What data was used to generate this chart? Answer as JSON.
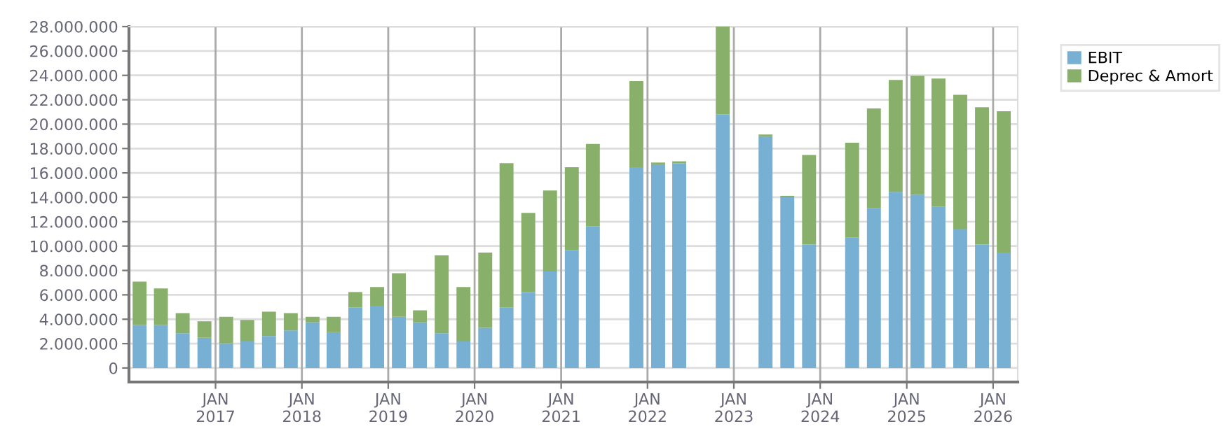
{
  "chart_data": {
    "type": "bar",
    "stacked": true,
    "x": [
      "2016-02-15",
      "2016-05-15",
      "2016-08-15",
      "2016-11-15",
      "2017-02-15",
      "2017-05-15",
      "2017-08-15",
      "2017-11-15",
      "2018-02-15",
      "2018-05-15",
      "2018-08-15",
      "2018-11-15",
      "2019-02-15",
      "2019-05-15",
      "2019-08-15",
      "2019-11-15",
      "2020-02-15",
      "2020-05-15",
      "2020-08-15",
      "2020-11-15",
      "2021-02-15",
      "2021-05-15",
      "2021-08-15",
      "2021-11-15",
      "2022-02-15",
      "2022-05-15",
      "2022-08-15",
      "2022-11-15",
      "2023-02-15",
      "2023-05-15",
      "2023-08-15",
      "2023-11-15",
      "2024-02-15",
      "2024-05-15",
      "2024-08-15",
      "2024-11-15",
      "2025-02-15",
      "2025-05-15",
      "2025-08-15",
      "2025-11-15",
      "2026-02-15"
    ],
    "series": [
      {
        "name": "EBIT",
        "color": "#77b0d3",
        "values": [
          3530000,
          3530000,
          2850000,
          2480000,
          2030000,
          2180000,
          2630000,
          3080000,
          3750000,
          2930000,
          4950000,
          5100000,
          4200000,
          3750000,
          2850000,
          2180000,
          3300000,
          4950000,
          6230000,
          7920000,
          9680000,
          11630000,
          null,
          16460000,
          16700000,
          16800000,
          null,
          20800000,
          null,
          19000000,
          14000000,
          10130000,
          null,
          10690000,
          13100000,
          14450000,
          14220000,
          13220000,
          11410000,
          10130000,
          9460000
        ]
      },
      {
        "name": "Deprec & Amort",
        "color": "#88b06a",
        "values": [
          3560000,
          3000000,
          1650000,
          1350000,
          2170000,
          1760000,
          1990000,
          1420000,
          450000,
          1270000,
          1280000,
          1540000,
          3570000,
          980000,
          6380000,
          4460000,
          6160000,
          11850000,
          6490000,
          6640000,
          6780000,
          6740000,
          null,
          7060000,
          150000,
          150000,
          null,
          7200000,
          null,
          150000,
          120000,
          7340000,
          null,
          7790000,
          8180000,
          9180000,
          9750000,
          10520000,
          10990000,
          11260000,
          11600000
        ]
      }
    ],
    "xlim": [
      "2016-01-01",
      "2026-04-15"
    ],
    "xticks": [
      {
        "value": "2017-01-01",
        "label": "JAN\n2017"
      },
      {
        "value": "2018-01-01",
        "label": "JAN\n2018"
      },
      {
        "value": "2019-01-01",
        "label": "JAN\n2019"
      },
      {
        "value": "2020-01-01",
        "label": "JAN\n2020"
      },
      {
        "value": "2021-01-01",
        "label": "JAN\n2021"
      },
      {
        "value": "2022-01-01",
        "label": "JAN\n2022"
      },
      {
        "value": "2023-01-01",
        "label": "JAN\n2023"
      },
      {
        "value": "2024-01-01",
        "label": "JAN\n2024"
      },
      {
        "value": "2025-01-01",
        "label": "JAN\n2025"
      },
      {
        "value": "2026-01-01",
        "label": "JAN\n2026"
      }
    ],
    "ylim": [
      -1150000,
      28000000
    ],
    "yticks": [
      {
        "value": 0,
        "label": "0"
      },
      {
        "value": 2000000,
        "label": "2.000.000"
      },
      {
        "value": 4000000,
        "label": "4.000.000"
      },
      {
        "value": 6000000,
        "label": "6.000.000"
      },
      {
        "value": 8000000,
        "label": "8.000.000"
      },
      {
        "value": 10000000,
        "label": "10.000.000"
      },
      {
        "value": 12000000,
        "label": "12.000.000"
      },
      {
        "value": 14000000,
        "label": "14.000.000"
      },
      {
        "value": 16000000,
        "label": "16.000.000"
      },
      {
        "value": 18000000,
        "label": "18.000.000"
      },
      {
        "value": 20000000,
        "label": "20.000.000"
      },
      {
        "value": 22000000,
        "label": "22.000.000"
      },
      {
        "value": 24000000,
        "label": "24.000.000"
      },
      {
        "value": 26000000,
        "label": "26.000.000"
      },
      {
        "value": 28000000,
        "label": "28.000.000"
      }
    ],
    "grid": true,
    "legend": "top right"
  }
}
